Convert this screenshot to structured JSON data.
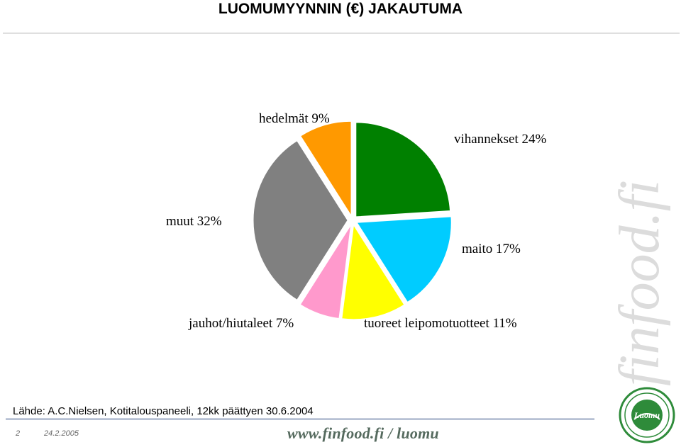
{
  "header": {
    "title": "LUOMUMYYNNIN  (€) JAKAUTUMA"
  },
  "chart_data": {
    "type": "pie",
    "title": "LUOMUMYYNNIN  (€) JAKAUTUMA",
    "slices": [
      {
        "label": "vihannekset 24%",
        "name": "vihannekset",
        "value": 24,
        "color": "#008000"
      },
      {
        "label": "maito 17%",
        "name": "maito",
        "value": 17,
        "color": "#00CCFF"
      },
      {
        "label": "tuoreet leipomotuotteet 11%",
        "name": "tuoreet leipomotuotteet",
        "value": 11,
        "color": "#FFFF00"
      },
      {
        "label": "jauhot/hiutaleet 7%",
        "name": "jauhot/hiutaleet",
        "value": 7,
        "color": "#FF99CC"
      },
      {
        "label": "muut 32%",
        "name": "muut",
        "value": 32,
        "color": "#808080"
      },
      {
        "label": "hedelmät 9%",
        "name": "hedelmät",
        "value": 9,
        "color": "#FF9900"
      }
    ],
    "exploded": true,
    "legend": "none"
  },
  "footer": {
    "source": "Lähde: A.C.Nielsen, Kotitalouspaneeli, 12kk päättyen 30.6.2004",
    "slide_number": "2",
    "date": "24.2.2005",
    "url": "www.finfood.fi / luomu"
  },
  "branding": {
    "watermark": "finfood.fi",
    "seal_icon": "luomu-seal-icon",
    "seal_text": "Luomu",
    "seal_color": "#2e8b3a"
  }
}
